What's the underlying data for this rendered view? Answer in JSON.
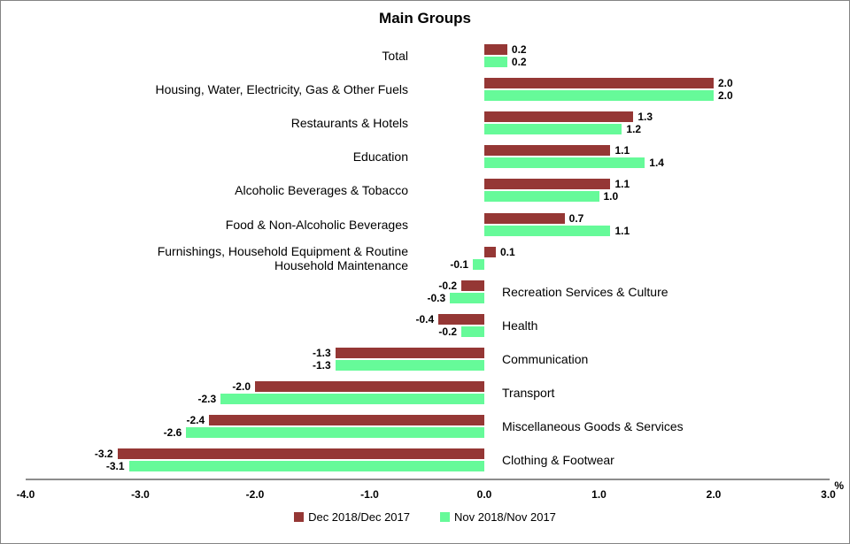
{
  "title": "Main Groups",
  "chart_data": {
    "type": "bar",
    "orientation": "horizontal",
    "title": "Main Groups",
    "xlabel": "%",
    "ylabel": "",
    "xlim": [
      -4.0,
      3.0
    ],
    "x_ticks": [
      "-4.0",
      "-3.0",
      "-2.0",
      "-1.0",
      "0.0",
      "1.0",
      "2.0",
      "3.0"
    ],
    "grid": false,
    "legend_position": "bottom",
    "value_labels": true,
    "categories": [
      "Total",
      "Housing, Water, Electricity, Gas & Other Fuels",
      "Restaurants & Hotels",
      "Education",
      "Alcoholic Beverages & Tobacco",
      "Food & Non-Alcoholic Beverages",
      "Furnishings, Household Equipment & Routine\nHousehold Maintenance",
      "Recreation Services & Culture",
      "Health",
      "Communication",
      "Transport",
      "Miscellaneous Goods & Services",
      "Clothing & Footwear"
    ],
    "series": [
      {
        "name": "Dec 2018/Dec 2017",
        "color": "#953735",
        "values": [
          0.2,
          2.0,
          1.3,
          1.1,
          1.1,
          0.7,
          0.1,
          -0.2,
          -0.4,
          -1.3,
          -2.0,
          -2.4,
          -3.2
        ]
      },
      {
        "name": "Nov 2018/Nov 2017",
        "color": "#66FA99",
        "values": [
          0.2,
          2.0,
          1.2,
          1.4,
          1.0,
          1.1,
          -0.1,
          -0.3,
          -0.2,
          -1.3,
          -2.3,
          -2.6,
          -3.1
        ]
      }
    ]
  }
}
